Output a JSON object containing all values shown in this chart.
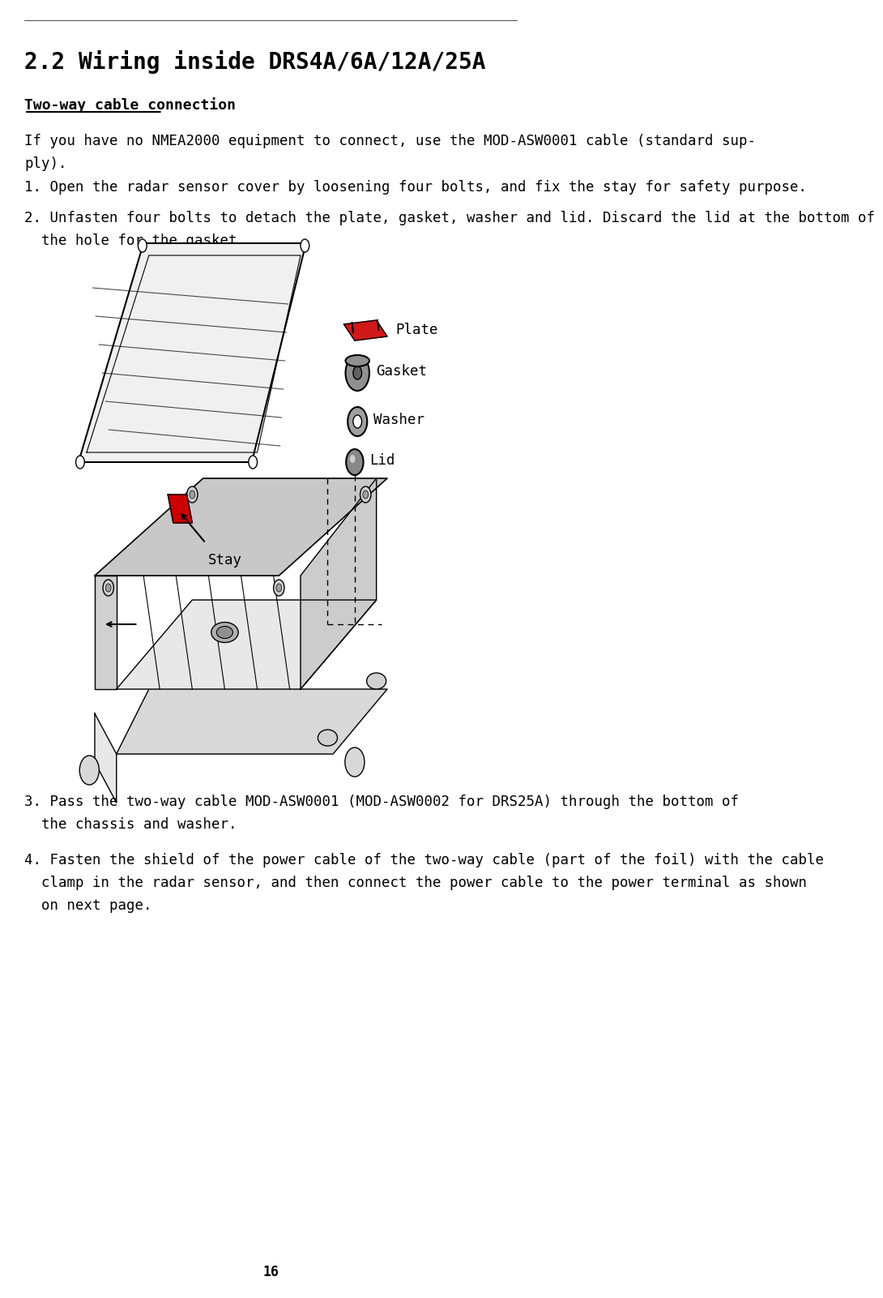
{
  "title": "2.2 Wiring inside DRS4A/6A/12A/25A",
  "section_heading": "Two-way cable connection",
  "para1": "If you have no NMEA2000 equipment to connect, use the MOD-ASW0001 cable (standard sup-\nply).",
  "step1": "1. Open the radar sensor cover by loosening four bolts, and fix the stay for safety purpose.",
  "step2": "2. Unfasten four bolts to detach the plate, gasket, washer and lid. Discard the lid at the bottom of\n  the hole for the gasket.",
  "step3": "3. Pass the two-way cable MOD-ASW0001 (MOD-ASW0002 for DRS25A) through the bottom of\n  the chassis and washer.",
  "step4": "4. Fasten the shield of the power cable of the two-way cable (part of the foil) with the cable\n  clamp in the radar sensor, and then connect the power cable to the power terminal as shown\n  on next page.",
  "page_number": "16",
  "label_plate": "Plate",
  "label_gasket": "Gasket",
  "label_washer": "Washer",
  "label_lid": "Lid",
  "label_stay": "Stay",
  "bg_color": "#ffffff",
  "text_color": "#000000",
  "title_fontsize": 20,
  "heading_fontsize": 13,
  "body_fontsize": 12.5,
  "fig_width": 9.7,
  "fig_height": 15.81
}
